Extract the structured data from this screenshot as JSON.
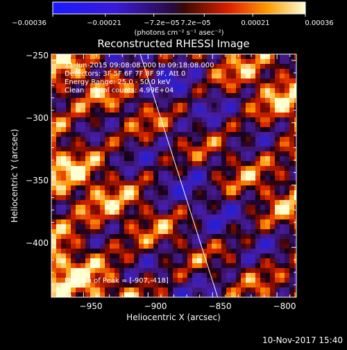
{
  "chart_data": {
    "type": "heatmap",
    "title": "Reconstructed RHESSI Image",
    "xlabel": "Heliocentric X (arcsec)",
    "ylabel": "Heliocentric Y (arcsec)",
    "xlim": [
      -975,
      -785
    ],
    "ylim": [
      -440,
      -245
    ],
    "x_ticks": [
      "−950",
      "−900",
      "−850",
      "−800"
    ],
    "x_tick_values": [
      -950,
      -900,
      -850,
      -800
    ],
    "y_ticks": [
      "−250",
      "−300",
      "−350",
      "−400"
    ],
    "y_tick_values": [
      -250,
      -300,
      -350,
      -400
    ],
    "colorbar": {
      "range": [
        -0.00036,
        0.00036
      ],
      "ticks": [
        "−0.00036",
        "−0.00021",
        "−7.2e−05",
        "7.2e−05",
        "0.00021",
        "0.00036"
      ],
      "tick_values": [
        -0.00036,
        -0.00021,
        -7.2e-05,
        7.2e-05,
        0.00021,
        0.00036
      ],
      "units": "(photons cm⁻² s⁻¹ asec⁻²)"
    },
    "annotations": {
      "time": "11-Jun-2015 09:08:08.000 to 09:18:08.000",
      "detectors": "Detectors: 3F 5F 6F 7F 8F 9F, Att 0",
      "energy": "Energy Range: 25.0 - 50.0 keV",
      "clean": "Clean    Total counts: 4.99E+04",
      "peak": "Position of Peak = [-907,-418]"
    },
    "limb_line": {
      "x": [
        -906,
        -846
      ],
      "y": [
        -245,
        -440
      ]
    }
  },
  "footer": {
    "timestamp": "10-Nov-2017 15:40"
  }
}
